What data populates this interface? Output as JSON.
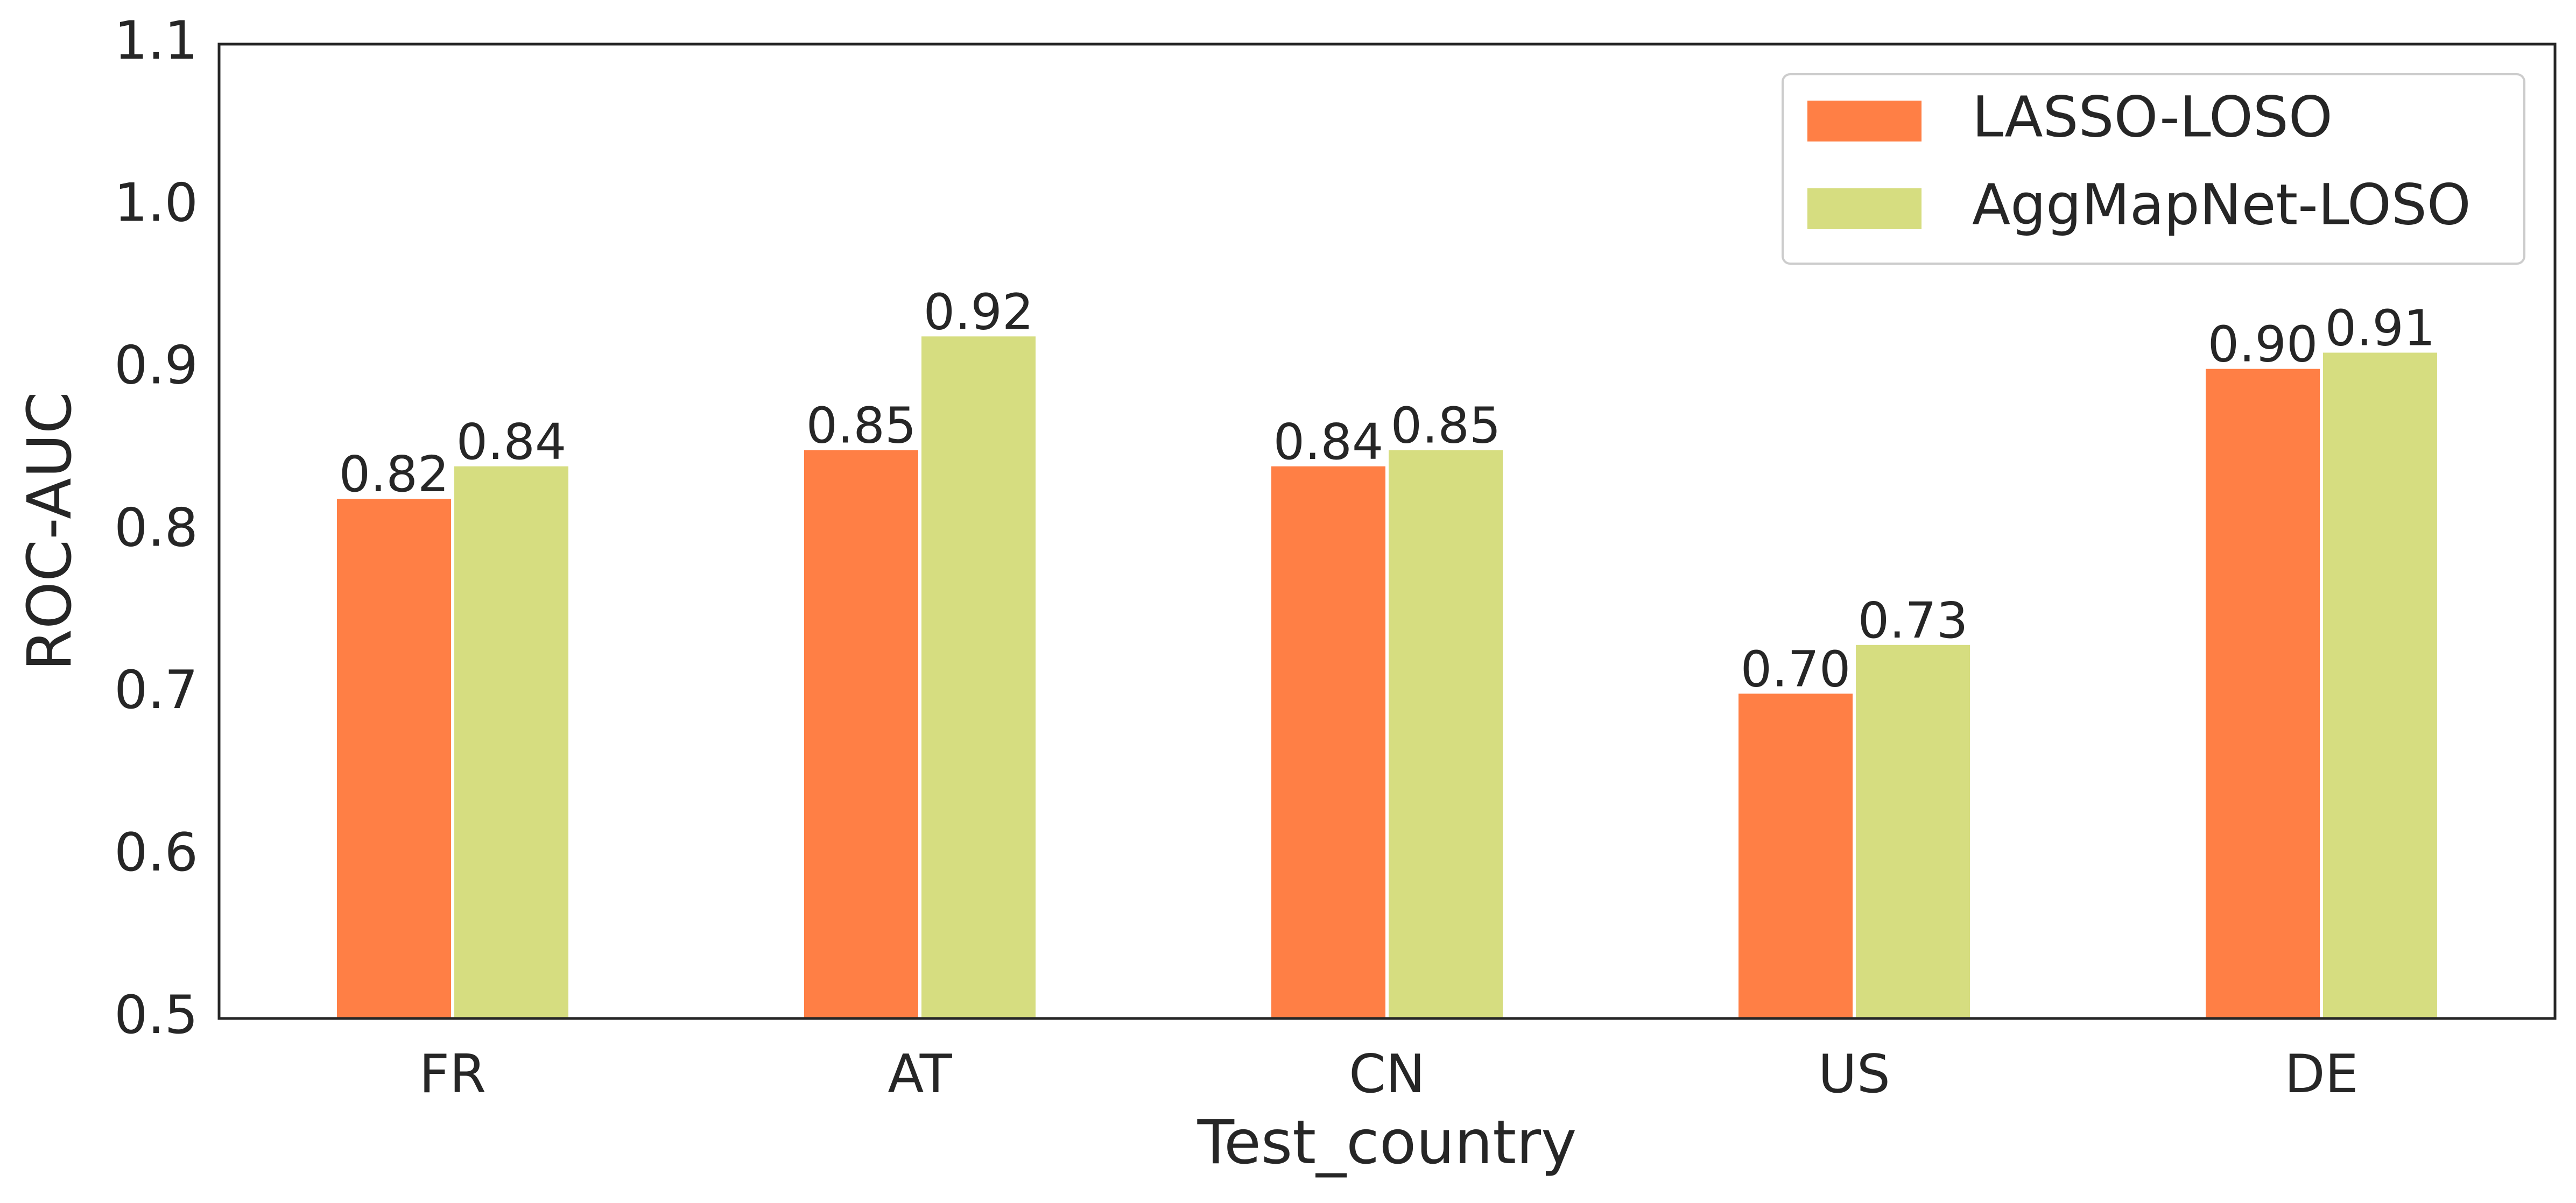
{
  "chart_data": {
    "type": "bar",
    "title": "",
    "xlabel": "Test_country",
    "ylabel": "ROC-AUC",
    "categories": [
      "FR",
      "AT",
      "CN",
      "US",
      "DE"
    ],
    "series": [
      {
        "name": "LASSO-LOSO",
        "color": "#ff7f45",
        "values": [
          0.82,
          0.85,
          0.84,
          0.7,
          0.9
        ],
        "labels": [
          "0.82",
          "0.85",
          "0.84",
          "0.70",
          "0.90"
        ]
      },
      {
        "name": "AggMapNet-LOSO",
        "color": "#d6dd80",
        "values": [
          0.84,
          0.92,
          0.85,
          0.73,
          0.91
        ],
        "labels": [
          "0.84",
          "0.92",
          "0.85",
          "0.73",
          "0.91"
        ]
      }
    ],
    "ylim": [
      0.5,
      1.1
    ],
    "yticks": [
      "0.5",
      "0.6",
      "0.7",
      "0.8",
      "0.9",
      "1.0",
      "1.1"
    ],
    "grid": false,
    "legend_position": "top-right"
  }
}
